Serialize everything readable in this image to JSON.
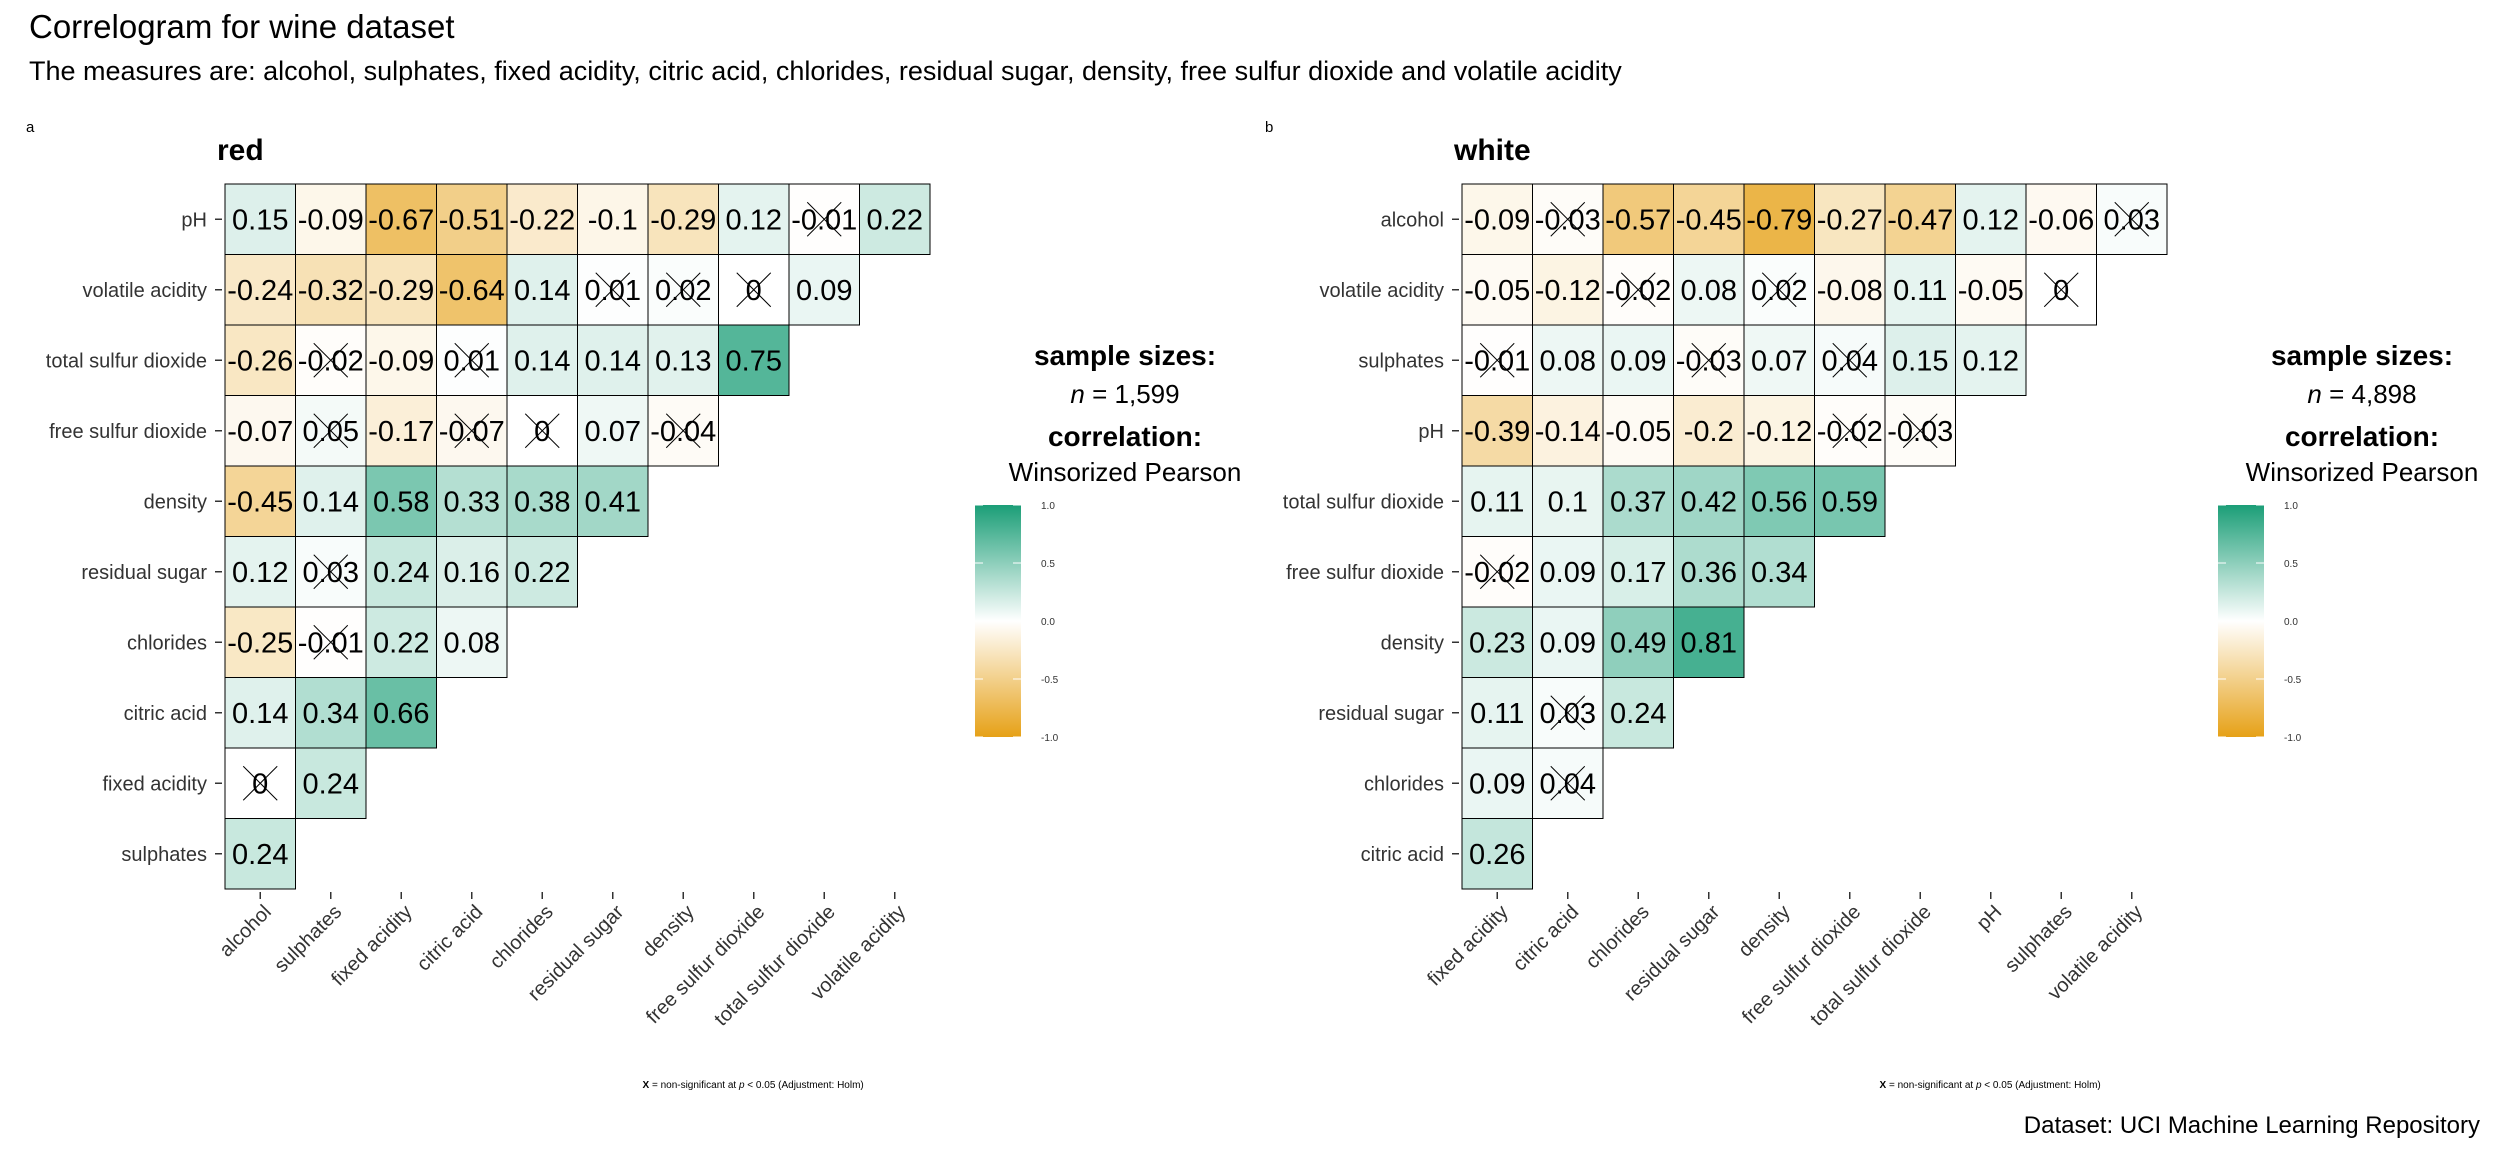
{
  "title": "Correlogram for wine dataset",
  "subtitle": "The measures are: alcohol, sulphates, fixed acidity, citric acid, chlorides, residual sugar, density, free sulfur dioxide and volatile acidity",
  "caption": "Dataset: UCI Machine Learning Repository",
  "colors": {
    "positive": "#1b9e77",
    "neutral": "#ffffff",
    "negative": "#e6a117",
    "border": "#000000"
  },
  "chart_data": [
    {
      "type": "heatmap",
      "tag": "a",
      "title": "red",
      "x_labels": [
        "alcohol",
        "sulphates",
        "fixed acidity",
        "citric acid",
        "chlorides",
        "residual sugar",
        "density",
        "free sulfur dioxide",
        "total sulfur dioxide",
        "volatile acidity"
      ],
      "y_labels": [
        "pH",
        "volatile acidity",
        "total sulfur dioxide",
        "free sulfur dioxide",
        "density",
        "residual sugar",
        "chlorides",
        "citric acid",
        "fixed acidity",
        "sulphates"
      ],
      "values": [
        [
          0.15,
          -0.09,
          -0.67,
          -0.51,
          -0.22,
          -0.1,
          -0.29,
          0.12,
          -0.01,
          0.22
        ],
        [
          -0.24,
          -0.32,
          -0.29,
          -0.64,
          0.14,
          0.01,
          0.02,
          0,
          0.09
        ],
        [
          -0.26,
          -0.02,
          -0.09,
          0.01,
          0.14,
          0.14,
          0.13,
          0.75
        ],
        [
          -0.07,
          0.05,
          -0.17,
          -0.07,
          0,
          0.07,
          -0.04
        ],
        [
          -0.45,
          0.14,
          0.58,
          0.33,
          0.38,
          0.41
        ],
        [
          0.12,
          0.03,
          0.24,
          0.16,
          0.22
        ],
        [
          -0.25,
          -0.01,
          0.22,
          0.08
        ],
        [
          0.14,
          0.34,
          0.66
        ],
        [
          0,
          0.24
        ],
        [
          0.24
        ]
      ],
      "nonsignificant": [
        [
          false,
          false,
          false,
          false,
          false,
          false,
          false,
          false,
          true,
          false
        ],
        [
          false,
          false,
          false,
          false,
          false,
          true,
          true,
          true,
          false
        ],
        [
          false,
          true,
          false,
          true,
          false,
          false,
          false,
          false
        ],
        [
          false,
          true,
          false,
          true,
          true,
          false,
          true
        ],
        [
          false,
          false,
          false,
          false,
          false,
          false
        ],
        [
          false,
          true,
          false,
          false,
          false
        ],
        [
          false,
          true,
          false,
          false
        ],
        [
          false,
          false,
          false
        ],
        [
          true,
          false
        ],
        [
          false
        ]
      ],
      "legend": {
        "sample_label": "sample sizes:",
        "n_symbol": "n",
        "n_text": " = 1,599",
        "corr_label": "correlation:",
        "corr_type": "Winsorized Pearson",
        "ticks": [
          1.0,
          0.5,
          0.0,
          -0.5,
          -1.0
        ],
        "tick_labels": [
          "1.0",
          "0.5",
          "0.0",
          "-0.5",
          "-1.0"
        ]
      },
      "footnote": {
        "symbol": "X",
        "text_before": " = non-significant at ",
        "p_symbol": "p",
        "text_after": " < 0.05 (Adjustment: Holm)"
      }
    },
    {
      "type": "heatmap",
      "tag": "b",
      "title": "white",
      "x_labels": [
        "fixed acidity",
        "citric acid",
        "chlorides",
        "residual sugar",
        "density",
        "free sulfur dioxide",
        "total sulfur dioxide",
        "pH",
        "sulphates",
        "volatile acidity"
      ],
      "y_labels": [
        "alcohol",
        "volatile acidity",
        "sulphates",
        "pH",
        "total sulfur dioxide",
        "free sulfur dioxide",
        "density",
        "residual sugar",
        "chlorides",
        "citric acid"
      ],
      "values": [
        [
          -0.09,
          -0.03,
          -0.57,
          -0.45,
          -0.79,
          -0.27,
          -0.47,
          0.12,
          -0.06,
          0.03
        ],
        [
          -0.05,
          -0.12,
          -0.02,
          0.08,
          0.02,
          -0.08,
          0.11,
          -0.05,
          0
        ],
        [
          -0.01,
          0.08,
          0.09,
          -0.03,
          0.07,
          0.04,
          0.15,
          0.12
        ],
        [
          -0.39,
          -0.14,
          -0.05,
          -0.2,
          -0.12,
          -0.02,
          -0.03
        ],
        [
          0.11,
          0.1,
          0.37,
          0.42,
          0.56,
          0.59
        ],
        [
          -0.02,
          0.09,
          0.17,
          0.36,
          0.34
        ],
        [
          0.23,
          0.09,
          0.49,
          0.81
        ],
        [
          0.11,
          0.03,
          0.24
        ],
        [
          0.09,
          0.04
        ],
        [
          0.26
        ]
      ],
      "nonsignificant": [
        [
          false,
          true,
          false,
          false,
          false,
          false,
          false,
          false,
          false,
          true
        ],
        [
          false,
          false,
          true,
          false,
          true,
          false,
          false,
          false,
          true
        ],
        [
          true,
          false,
          false,
          true,
          false,
          true,
          false,
          false
        ],
        [
          false,
          false,
          false,
          false,
          false,
          true,
          true
        ],
        [
          false,
          false,
          false,
          false,
          false,
          false
        ],
        [
          true,
          false,
          false,
          false,
          false
        ],
        [
          false,
          false,
          false,
          false
        ],
        [
          false,
          true,
          false
        ],
        [
          false,
          true
        ],
        [
          false
        ]
      ],
      "legend": {
        "sample_label": "sample sizes:",
        "n_symbol": "n",
        "n_text": " = 4,898",
        "corr_label": "correlation:",
        "corr_type": "Winsorized Pearson",
        "ticks": [
          1.0,
          0.5,
          0.0,
          -0.5,
          -1.0
        ],
        "tick_labels": [
          "1.0",
          "0.5",
          "0.0",
          "-0.5",
          "-1.0"
        ]
      },
      "footnote": {
        "symbol": "X",
        "text_before": " = non-significant at ",
        "p_symbol": "p",
        "text_after": " < 0.05 (Adjustment: Holm)"
      }
    }
  ]
}
